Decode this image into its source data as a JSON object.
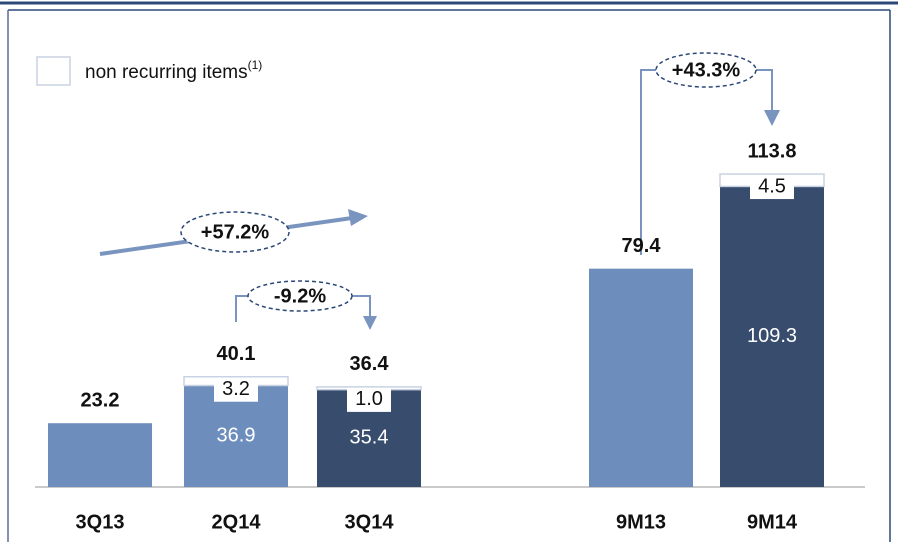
{
  "chart_data": {
    "type": "stacked_bar",
    "categories": [
      "3Q13",
      "2Q14",
      "3Q14",
      "9M13",
      "9M14"
    ],
    "series": [
      {
        "colors": [
          "#6d8dbd",
          "#6d8dbd",
          "#384c6e",
          "#6d8dbd",
          "#384c6e"
        ],
        "values": [
          23.2,
          36.9,
          35.4,
          79.4,
          109.3
        ]
      },
      {
        "name": "non recurring items",
        "color": "#ffffff",
        "values": [
          null,
          3.2,
          1.0,
          null,
          4.5
        ],
        "value_labels": [
          null,
          "3.2",
          "1.0",
          null,
          "4.5"
        ]
      }
    ],
    "totals": [
      23.2,
      40.1,
      36.4,
      79.4,
      113.8
    ],
    "legend_note": "(1)",
    "annotations": [
      "+57.2%",
      "-9.2%",
      "+43.3%"
    ],
    "ylim": [
      0,
      116
    ]
  }
}
